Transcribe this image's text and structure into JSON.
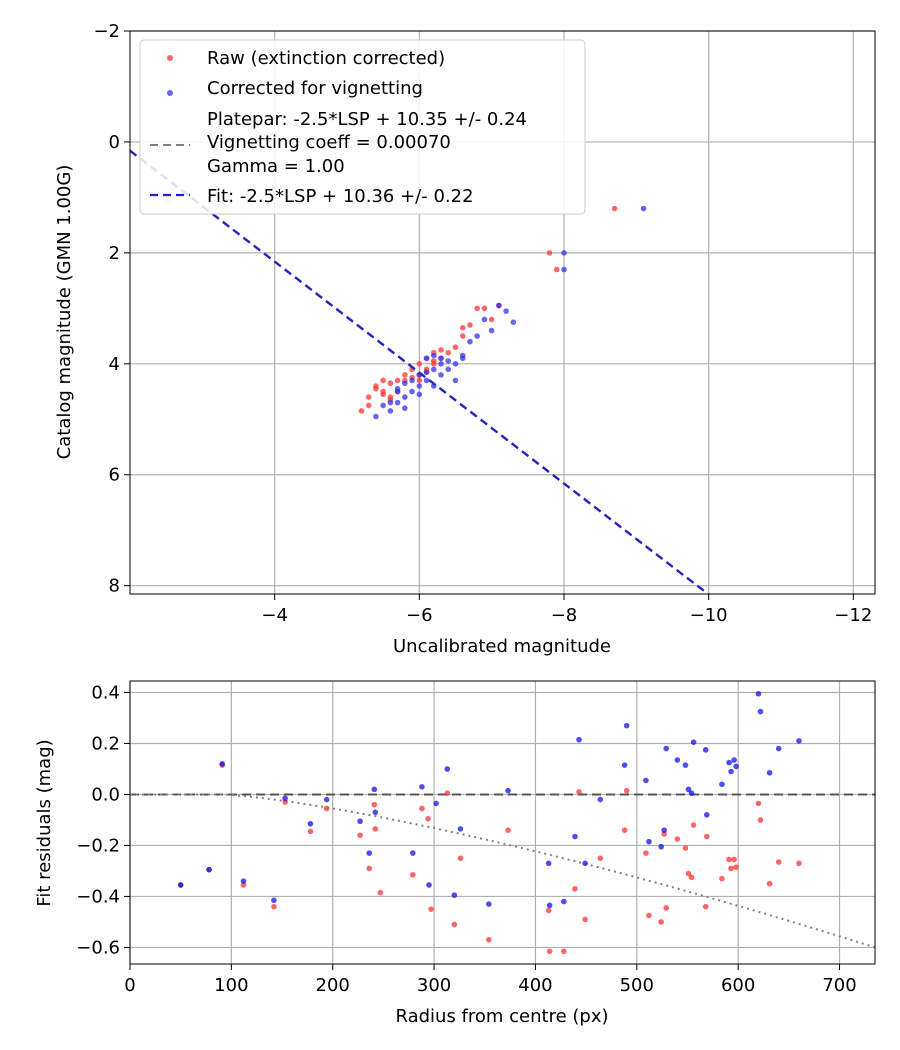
{
  "chart_data": [
    {
      "type": "scatter",
      "xlabel": "Uncalibrated magnitude",
      "ylabel": "Catalog magnitude (GMN 1.00G)",
      "xlim": [
        -2.0,
        -12.3
      ],
      "ylim": [
        8.15,
        -2.0
      ],
      "xticks": [
        -4,
        -6,
        -8,
        -10,
        -12
      ],
      "xtick_labels": [
        "−4",
        "−6",
        "−8",
        "−10",
        "−12"
      ],
      "yticks": [
        -2,
        0,
        2,
        4,
        6,
        8
      ],
      "ytick_labels": [
        "−2",
        "0",
        "2",
        "4",
        "6",
        "8"
      ],
      "grid": true,
      "legend_position": "top-left",
      "legend": {
        "raw": "Raw (extinction corrected)",
        "corrected": "Corrected for vignetting",
        "platepar_line1": "Platepar: -2.5*LSP + 10.35 +/- 0.24",
        "platepar_line2": "Vignetting coeff = 0.00070",
        "platepar_line3": "Gamma = 1.00",
        "fit": "Fit: -2.5*LSP + 10.36 +/- 0.22"
      },
      "colors": {
        "raw": "#ff3333",
        "corrected": "#3333ee",
        "platepar_line": "#808080",
        "fit_line": "#2222cc",
        "grid": "#b0b0b0"
      },
      "platepar_line": {
        "slope": 1.0,
        "intercept": 10.35
      },
      "fit_line": {
        "slope": 1.0,
        "intercept": 10.36
      },
      "series": [
        {
          "name": "Raw (extinction corrected)",
          "x": [
            -5.2,
            -5.3,
            -5.3,
            -5.4,
            -5.5,
            -5.5,
            -5.6,
            -5.6,
            -5.7,
            -5.7,
            -5.8,
            -5.8,
            -5.9,
            -6.0,
            -6.0,
            -6.1,
            -6.1,
            -6.2,
            -6.2,
            -6.3,
            -6.3,
            -6.4,
            -6.5,
            -6.6,
            -6.6,
            -6.7,
            -6.8,
            -6.9,
            -7.0,
            -7.1,
            -7.8,
            -7.9,
            -8.7,
            -5.4,
            -5.6,
            -5.9,
            -6.0,
            -6.2,
            -5.5,
            -6.1
          ],
          "y": [
            4.85,
            4.6,
            4.75,
            4.4,
            4.5,
            4.3,
            4.35,
            4.6,
            4.5,
            4.3,
            4.2,
            4.3,
            4.1,
            4.0,
            4.2,
            3.9,
            4.1,
            3.8,
            4.0,
            3.75,
            3.9,
            3.8,
            3.7,
            3.5,
            3.35,
            3.3,
            3.0,
            3.0,
            3.2,
            2.95,
            2.0,
            2.3,
            1.2,
            4.45,
            4.65,
            4.25,
            4.3,
            3.95,
            4.55,
            4.15
          ]
        },
        {
          "name": "Corrected for vignetting",
          "x": [
            -5.4,
            -5.5,
            -5.6,
            -5.6,
            -5.7,
            -5.7,
            -5.8,
            -5.8,
            -5.9,
            -5.9,
            -6.0,
            -6.0,
            -6.1,
            -6.1,
            -6.2,
            -6.2,
            -6.3,
            -6.3,
            -6.4,
            -6.5,
            -6.5,
            -6.6,
            -6.6,
            -6.7,
            -6.8,
            -6.9,
            -7.0,
            -7.1,
            -7.2,
            -7.3,
            -8.0,
            -8.0,
            -9.1,
            -5.8,
            -6.1,
            -6.3,
            -6.0,
            -6.4,
            -5.7,
            -6.2
          ],
          "y": [
            4.95,
            4.75,
            4.7,
            4.85,
            4.5,
            4.7,
            4.6,
            4.8,
            4.5,
            4.3,
            4.4,
            4.2,
            4.3,
            3.9,
            4.4,
            4.1,
            4.0,
            4.2,
            3.95,
            4.0,
            4.3,
            3.9,
            3.85,
            3.6,
            3.5,
            3.2,
            3.4,
            2.95,
            3.05,
            3.25,
            2.3,
            2.0,
            1.2,
            4.35,
            4.15,
            3.9,
            4.55,
            4.1,
            4.45,
            3.85
          ]
        }
      ]
    },
    {
      "type": "scatter",
      "xlabel": "Radius from centre (px)",
      "ylabel": "Fit residuals (mag)",
      "xlim": [
        0,
        735
      ],
      "ylim": [
        -0.665,
        0.445
      ],
      "xticks": [
        0,
        100,
        200,
        300,
        400,
        500,
        600,
        700
      ],
      "xtick_labels": [
        "0",
        "100",
        "200",
        "300",
        "400",
        "500",
        "600",
        "700"
      ],
      "yticks": [
        -0.6,
        -0.4,
        -0.2,
        0.0,
        0.2,
        0.4
      ],
      "ytick_labels": [
        "−0.6",
        "−0.4",
        "−0.2",
        "0.0",
        "0.2",
        "0.4"
      ],
      "grid": true,
      "zero_line": 0.0,
      "vignetting_curve": {
        "x0": 90,
        "x_end": 735,
        "y_end": -0.6
      },
      "colors": {
        "raw": "#ff3333",
        "corrected": "#1111ee",
        "zero_line": "#555555",
        "vignetting_curve": "#808080",
        "grid": "#b0b0b0"
      },
      "series": [
        {
          "name": "Raw (extinction corrected)",
          "x": [
            50,
            78,
            91,
            112,
            142,
            153,
            178,
            194,
            227,
            236,
            241,
            242,
            247,
            279,
            288,
            294,
            297,
            313,
            320,
            326,
            354,
            373,
            413,
            414,
            428,
            439,
            443,
            449,
            464,
            488,
            490,
            509,
            512,
            524,
            527,
            529,
            540,
            548,
            551,
            554,
            556,
            568,
            569,
            584,
            591,
            593,
            596,
            598,
            620,
            622,
            631,
            640,
            660
          ],
          "y": [
            -0.355,
            -0.295,
            0.115,
            -0.355,
            -0.44,
            -0.03,
            -0.145,
            -0.055,
            -0.16,
            -0.29,
            -0.04,
            -0.135,
            -0.385,
            -0.315,
            -0.055,
            -0.095,
            -0.45,
            0.005,
            -0.51,
            -0.25,
            -0.57,
            -0.14,
            -0.455,
            -0.615,
            -0.615,
            -0.37,
            0.01,
            -0.49,
            -0.25,
            -0.14,
            0.015,
            -0.23,
            -0.475,
            -0.5,
            -0.155,
            -0.445,
            -0.175,
            -0.21,
            -0.31,
            -0.325,
            -0.12,
            -0.44,
            -0.165,
            -0.33,
            -0.255,
            -0.29,
            -0.255,
            -0.285,
            -0.035,
            -0.1,
            -0.35,
            -0.265,
            -0.27
          ]
        },
        {
          "name": "Corrected for vignetting",
          "x": [
            50,
            78,
            91,
            112,
            142,
            153,
            178,
            194,
            227,
            236,
            241,
            242,
            279,
            288,
            295,
            302,
            313,
            320,
            326,
            354,
            373,
            413,
            414,
            428,
            439,
            443,
            449,
            464,
            488,
            490,
            509,
            512,
            524,
            527,
            529,
            540,
            548,
            551,
            554,
            556,
            568,
            569,
            584,
            591,
            593,
            596,
            598,
            620,
            622,
            631,
            640,
            660
          ],
          "y": [
            -0.355,
            -0.295,
            0.12,
            -0.34,
            -0.415,
            -0.015,
            -0.115,
            -0.02,
            -0.105,
            -0.23,
            0.02,
            -0.07,
            -0.23,
            0.03,
            -0.355,
            -0.035,
            0.1,
            -0.395,
            -0.135,
            -0.43,
            0.015,
            -0.27,
            -0.435,
            -0.42,
            -0.165,
            0.215,
            -0.27,
            -0.02,
            0.115,
            0.27,
            0.055,
            -0.185,
            -0.205,
            -0.14,
            0.18,
            0.135,
            0.115,
            0.02,
            0.005,
            0.205,
            0.175,
            -0.08,
            0.04,
            0.125,
            0.09,
            0.135,
            0.11,
            0.395,
            0.325,
            0.085,
            0.18,
            0.21
          ]
        }
      ]
    }
  ]
}
